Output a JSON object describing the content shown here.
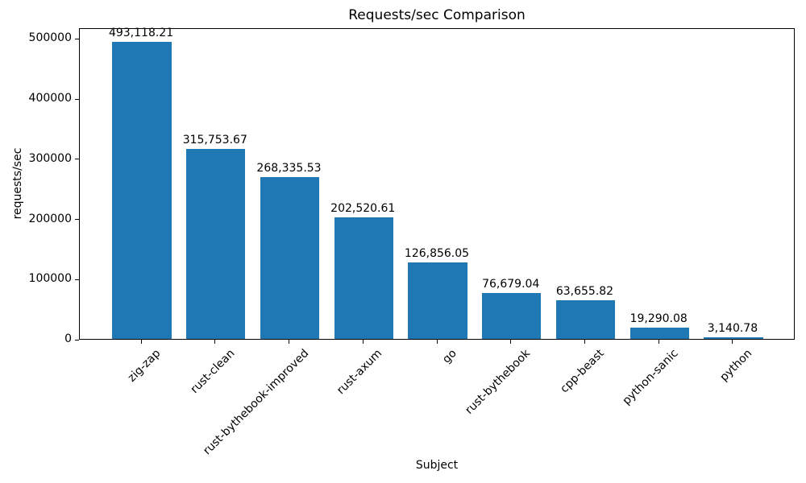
{
  "chart_data": {
    "type": "bar",
    "title": "Requests/sec Comparison",
    "xlabel": "Subject",
    "ylabel": "requests/sec",
    "categories": [
      "zig-zap",
      "rust-clean",
      "rust-bythebook-improved",
      "rust-axum",
      "go",
      "rust-bythebook",
      "cpp-beast",
      "python-sanic",
      "python"
    ],
    "values": [
      493118.21,
      315753.67,
      268335.53,
      202520.61,
      126856.05,
      76679.04,
      63655.82,
      19290.08,
      3140.78
    ],
    "value_labels": [
      "493,118.21",
      "315,753.67",
      "268,335.53",
      "202,520.61",
      "126,856.05",
      "76,679.04",
      "63,655.82",
      "19,290.08",
      "3,140.78"
    ],
    "yticks": [
      0,
      100000,
      200000,
      300000,
      400000,
      500000
    ],
    "ylim": [
      0,
      517774
    ],
    "bar_color": "#1f77b4",
    "grid": "off",
    "legend": "none",
    "x_tick_rotation_deg": 45
  }
}
